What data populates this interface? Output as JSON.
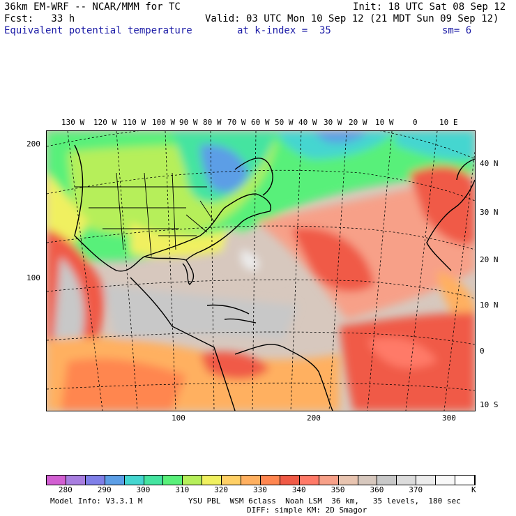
{
  "header": {
    "model_line": "36km EM-WRF -- NCAR/MMM for TC",
    "init_line": "Init: 18 UTC Sat 08 Sep 12",
    "fcst_line": "Fcst:   33 h",
    "valid_line": "Valid: 03 UTC Mon 10 Sep 12 (21 MDT Sun 09 Sep 12)",
    "field_name": "Equivalent potential temperature",
    "k_index": "at k-index =  35",
    "smoothing": "sm= 6"
  },
  "map": {
    "top_longitudes": [
      "130 W",
      "120 W",
      "110 W",
      "100 W",
      "90 W",
      "80 W",
      "70 W",
      "60 W",
      "50 W",
      "40 W",
      "30 W",
      "20 W",
      "10 W",
      "0",
      "10 E"
    ],
    "right_latitudes": [
      "40 N",
      "30 N",
      "20 N",
      "10 N",
      "0",
      "10 S"
    ],
    "left_ticks": [
      "200",
      "100"
    ],
    "bottom_ticks": [
      "100",
      "200",
      "300"
    ]
  },
  "colorbar": {
    "colors": [
      "#d25fd2",
      "#a87ee0",
      "#7f7fe8",
      "#5c9ee6",
      "#44d6d0",
      "#44e4a0",
      "#59f07a",
      "#b6ef5a",
      "#f0f060",
      "#ffd066",
      "#ffb060",
      "#ff8650",
      "#f05a46",
      "#ff7a68",
      "#f7a088",
      "#e8c4b0",
      "#d7c8be",
      "#c8c8c8",
      "#dcdcdc",
      "#ececec",
      "#f8f8f8",
      "#ffffff"
    ],
    "labels": [
      "280",
      "290",
      "300",
      "310",
      "320",
      "330",
      "340",
      "350",
      "360",
      "370"
    ],
    "unit": "K"
  },
  "footer": {
    "model_info": "Model Info: V3.3.1 M",
    "physics": "YSU PBL  WSM 6class  Noah LSM  36 km,   35 levels,  180 sec",
    "diffusion": "DIFF: simple KM: 2D Smagor"
  }
}
